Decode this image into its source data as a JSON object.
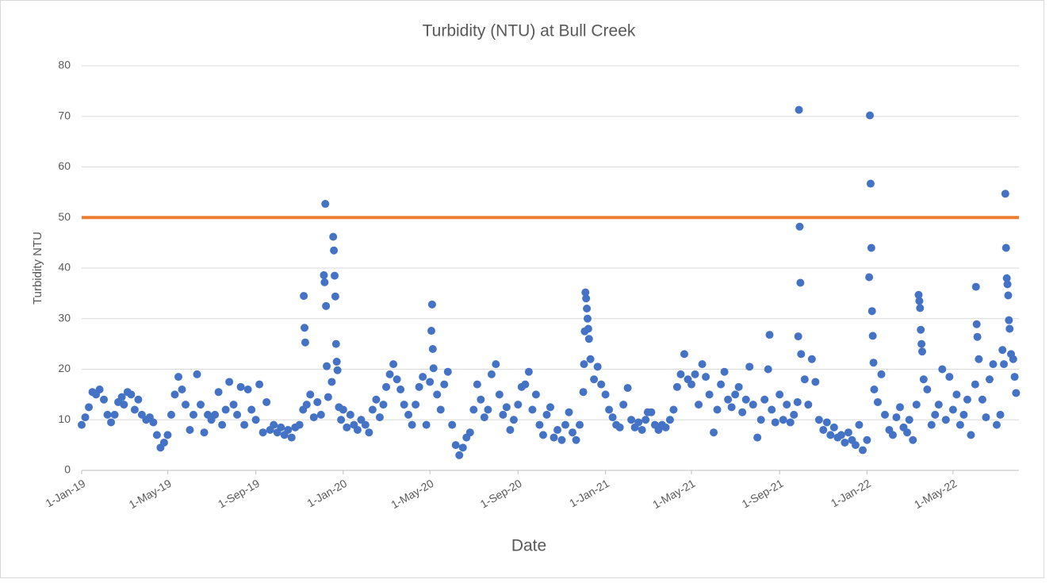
{
  "chart_data": {
    "type": "scatter",
    "title": "Turbidity (NTU) at Bull Creek",
    "x_label": "Date",
    "y_label": "Turbidity NTU",
    "xlim": [
      "2019-01-01",
      "2022-08-01"
    ],
    "ylim": [
      0,
      80
    ],
    "yticks": [
      0,
      10,
      20,
      30,
      40,
      50,
      60,
      70,
      80
    ],
    "xticks": [
      {
        "value": "2019-01-01",
        "label": "1-Jan-19"
      },
      {
        "value": "2019-05-01",
        "label": "1-May-19"
      },
      {
        "value": "2019-09-01",
        "label": "1-Sep-19"
      },
      {
        "value": "2020-01-01",
        "label": "1-Jan-20"
      },
      {
        "value": "2020-05-01",
        "label": "1-May-20"
      },
      {
        "value": "2020-09-01",
        "label": "1-Sep-20"
      },
      {
        "value": "2021-01-01",
        "label": "1-Jan-21"
      },
      {
        "value": "2021-05-01",
        "label": "1-May-21"
      },
      {
        "value": "2021-09-01",
        "label": "1-Sep-21"
      },
      {
        "value": "2022-01-01",
        "label": "1-Jan-22"
      },
      {
        "value": "2022-05-01",
        "label": "1-May-22"
      }
    ],
    "grid": true,
    "reference_line": {
      "value": 50,
      "color": "#ed7d31"
    },
    "series": [
      {
        "color": "#4472c4",
        "x": [
          "2019-01-01",
          "2019-01-06",
          "2019-01-11",
          "2019-01-16",
          "2019-01-21",
          "2019-01-26",
          "2019-02-01",
          "2019-02-06",
          "2019-02-11",
          "2019-02-16",
          "2019-02-21",
          "2019-02-26",
          "2019-03-01",
          "2019-03-06",
          "2019-03-11",
          "2019-03-16",
          "2019-03-21",
          "2019-03-26",
          "2019-04-01",
          "2019-04-06",
          "2019-04-11",
          "2019-04-16",
          "2019-04-21",
          "2019-04-26",
          "2019-05-01",
          "2019-05-06",
          "2019-05-11",
          "2019-05-16",
          "2019-05-21",
          "2019-05-26",
          "2019-06-01",
          "2019-06-06",
          "2019-06-11",
          "2019-06-16",
          "2019-06-21",
          "2019-06-26",
          "2019-07-01",
          "2019-07-06",
          "2019-07-11",
          "2019-07-16",
          "2019-07-21",
          "2019-07-26",
          "2019-08-01",
          "2019-08-06",
          "2019-08-11",
          "2019-08-16",
          "2019-08-21",
          "2019-08-26",
          "2019-09-01",
          "2019-09-06",
          "2019-09-11",
          "2019-09-16",
          "2019-09-21",
          "2019-09-26",
          "2019-10-01",
          "2019-10-06",
          "2019-10-11",
          "2019-10-16",
          "2019-10-21",
          "2019-10-26",
          "2019-11-01",
          "2019-11-06",
          "2019-11-07",
          "2019-11-08",
          "2019-11-09",
          "2019-11-11",
          "2019-11-16",
          "2019-11-21",
          "2019-11-26",
          "2019-12-01",
          "2019-12-05",
          "2019-12-06",
          "2019-12-07",
          "2019-12-08",
          "2019-12-09",
          "2019-12-11",
          "2019-12-16",
          "2019-12-18",
          "2019-12-19",
          "2019-12-20",
          "2019-12-21",
          "2019-12-22",
          "2019-12-23",
          "2019-12-24",
          "2019-12-26",
          "2019-12-29",
          "2020-01-01",
          "2020-01-06",
          "2020-01-11",
          "2020-01-16",
          "2020-01-21",
          "2020-01-26",
          "2020-02-01",
          "2020-02-06",
          "2020-02-11",
          "2020-02-16",
          "2020-02-21",
          "2020-02-26",
          "2020-03-01",
          "2020-03-06",
          "2020-03-11",
          "2020-03-16",
          "2020-03-21",
          "2020-03-26",
          "2020-04-01",
          "2020-04-06",
          "2020-04-11",
          "2020-04-16",
          "2020-04-21",
          "2020-04-26",
          "2020-05-01",
          "2020-05-03",
          "2020-05-04",
          "2020-05-05",
          "2020-05-06",
          "2020-05-11",
          "2020-05-16",
          "2020-05-21",
          "2020-05-26",
          "2020-06-01",
          "2020-06-06",
          "2020-06-11",
          "2020-06-16",
          "2020-06-21",
          "2020-06-26",
          "2020-07-01",
          "2020-07-06",
          "2020-07-11",
          "2020-07-16",
          "2020-07-21",
          "2020-07-26",
          "2020-08-01",
          "2020-08-06",
          "2020-08-11",
          "2020-08-16",
          "2020-08-21",
          "2020-08-26",
          "2020-09-01",
          "2020-09-06",
          "2020-09-11",
          "2020-09-16",
          "2020-09-21",
          "2020-09-26",
          "2020-10-01",
          "2020-10-06",
          "2020-10-11",
          "2020-10-16",
          "2020-10-21",
          "2020-10-26",
          "2020-11-01",
          "2020-11-06",
          "2020-11-11",
          "2020-11-16",
          "2020-11-21",
          "2020-11-26",
          "2020-12-01",
          "2020-12-02",
          "2020-12-03",
          "2020-12-04",
          "2020-12-05",
          "2020-12-06",
          "2020-12-07",
          "2020-12-08",
          "2020-12-09",
          "2020-12-11",
          "2020-12-16",
          "2020-12-21",
          "2020-12-26",
          "2021-01-01",
          "2021-01-06",
          "2021-01-11",
          "2021-01-16",
          "2021-01-21",
          "2021-01-26",
          "2021-02-01",
          "2021-02-06",
          "2021-02-11",
          "2021-02-16",
          "2021-02-21",
          "2021-02-26",
          "2021-03-01",
          "2021-03-06",
          "2021-03-11",
          "2021-03-16",
          "2021-03-21",
          "2021-03-26",
          "2021-04-01",
          "2021-04-06",
          "2021-04-11",
          "2021-04-16",
          "2021-04-21",
          "2021-04-26",
          "2021-05-01",
          "2021-05-06",
          "2021-05-11",
          "2021-05-16",
          "2021-05-21",
          "2021-05-26",
          "2021-06-01",
          "2021-06-06",
          "2021-06-11",
          "2021-06-16",
          "2021-06-21",
          "2021-06-26",
          "2021-07-01",
          "2021-07-06",
          "2021-07-11",
          "2021-07-16",
          "2021-07-21",
          "2021-07-26",
          "2021-08-01",
          "2021-08-06",
          "2021-08-11",
          "2021-08-16",
          "2021-08-18",
          "2021-08-21",
          "2021-08-26",
          "2021-09-01",
          "2021-09-06",
          "2021-09-11",
          "2021-09-16",
          "2021-09-21",
          "2021-09-26",
          "2021-09-27",
          "2021-09-28",
          "2021-09-29",
          "2021-09-30",
          "2021-10-01",
          "2021-10-06",
          "2021-10-11",
          "2021-10-16",
          "2021-10-21",
          "2021-10-26",
          "2021-11-01",
          "2021-11-06",
          "2021-11-11",
          "2021-11-16",
          "2021-11-21",
          "2021-11-26",
          "2021-12-01",
          "2021-12-06",
          "2021-12-11",
          "2021-12-16",
          "2021-12-21",
          "2021-12-26",
          "2022-01-01",
          "2022-01-04",
          "2022-01-05",
          "2022-01-06",
          "2022-01-07",
          "2022-01-08",
          "2022-01-09",
          "2022-01-10",
          "2022-01-11",
          "2022-01-16",
          "2022-01-21",
          "2022-01-26",
          "2022-02-01",
          "2022-02-06",
          "2022-02-11",
          "2022-02-16",
          "2022-02-21",
          "2022-02-26",
          "2022-03-01",
          "2022-03-06",
          "2022-03-11",
          "2022-03-14",
          "2022-03-15",
          "2022-03-16",
          "2022-03-17",
          "2022-03-18",
          "2022-03-19",
          "2022-03-21",
          "2022-03-26",
          "2022-04-01",
          "2022-04-06",
          "2022-04-11",
          "2022-04-16",
          "2022-04-21",
          "2022-04-26",
          "2022-05-01",
          "2022-05-06",
          "2022-05-11",
          "2022-05-16",
          "2022-05-21",
          "2022-05-26",
          "2022-06-01",
          "2022-06-02",
          "2022-06-03",
          "2022-06-04",
          "2022-06-06",
          "2022-06-11",
          "2022-06-16",
          "2022-06-21",
          "2022-06-26",
          "2022-07-01",
          "2022-07-06",
          "2022-07-09",
          "2022-07-11",
          "2022-07-13",
          "2022-07-14",
          "2022-07-15",
          "2022-07-16",
          "2022-07-17",
          "2022-07-18",
          "2022-07-19",
          "2022-07-21",
          "2022-07-24",
          "2022-07-26",
          "2022-07-28"
        ],
        "values": [
          9,
          10.5,
          12.5,
          15.5,
          15,
          16,
          14,
          11,
          9.5,
          11,
          13.5,
          14.5,
          13,
          15.5,
          15,
          12,
          14,
          11,
          10,
          10.5,
          9.5,
          7,
          4.5,
          5.5,
          7,
          11,
          15,
          18.5,
          16,
          13,
          8,
          11,
          19,
          13,
          7.5,
          11,
          10,
          11,
          15.5,
          9,
          12,
          17.5,
          13,
          11,
          16.5,
          9,
          16,
          12,
          10,
          17,
          7.5,
          13.5,
          8,
          9,
          7.5,
          8.5,
          7,
          8,
          6.5,
          8.5,
          9,
          12,
          34.5,
          28.2,
          25.3,
          13,
          15,
          10.5,
          13.5,
          11,
          38.6,
          37.2,
          52.7,
          32.5,
          20.6,
          14.5,
          17.5,
          46.2,
          43.5,
          38.5,
          34.4,
          25,
          21.5,
          19.8,
          12.5,
          10,
          12,
          8.5,
          11,
          9,
          8,
          10,
          9,
          7.5,
          12,
          14,
          10.5,
          13,
          16.5,
          19,
          21,
          18,
          16,
          13,
          11,
          9,
          13,
          16.5,
          18.5,
          9,
          17.5,
          27.6,
          32.8,
          24,
          20.2,
          15,
          12,
          17,
          19.5,
          9,
          5,
          3,
          4.5,
          6.5,
          7.5,
          12,
          17,
          14,
          10.5,
          12,
          19,
          21,
          15,
          11,
          12.5,
          8,
          10,
          13,
          16.5,
          17,
          19.5,
          12,
          15,
          9,
          7,
          11,
          12.5,
          6.5,
          8,
          6,
          9,
          11.5,
          7.5,
          6,
          9,
          15.5,
          21,
          27.5,
          35.2,
          34,
          32,
          30,
          28,
          26,
          22,
          18,
          20.5,
          17,
          15,
          12,
          10.5,
          9,
          8.5,
          13,
          16.3,
          10,
          8.5,
          9.5,
          8,
          10,
          11.5,
          11.5,
          9,
          8,
          9,
          8.5,
          10,
          12,
          16.5,
          19,
          23,
          18,
          17,
          19,
          13,
          21,
          18.5,
          15,
          7.5,
          12,
          17,
          19.5,
          14,
          12.5,
          15,
          16.5,
          11.5,
          14,
          20.5,
          13,
          6.5,
          10,
          14,
          20,
          26.8,
          12,
          9.5,
          15,
          10,
          13,
          9.5,
          11,
          13.5,
          26.5,
          71.3,
          48.2,
          37.1,
          23,
          18,
          13,
          22,
          17.5,
          10,
          8,
          9.5,
          7,
          8.5,
          6.5,
          7,
          5.5,
          7.5,
          6,
          5,
          9,
          4,
          6,
          38.2,
          70.2,
          56.7,
          44,
          31.5,
          26.6,
          21.3,
          16,
          13.5,
          19,
          11,
          8,
          7,
          10.5,
          12.5,
          8.5,
          7.5,
          10,
          6,
          13,
          34.7,
          33.5,
          32.1,
          27.8,
          25,
          23.5,
          18,
          16,
          9,
          11,
          13,
          20,
          10,
          18.5,
          12,
          15,
          9,
          11,
          14,
          7,
          17,
          36.3,
          28.9,
          26.4,
          22,
          14,
          10.5,
          18,
          21,
          9,
          11,
          23.8,
          21,
          54.7,
          44,
          38,
          36.8,
          34.6,
          29.7,
          28,
          23,
          22,
          18.5,
          15.3
        ]
      }
    ]
  }
}
